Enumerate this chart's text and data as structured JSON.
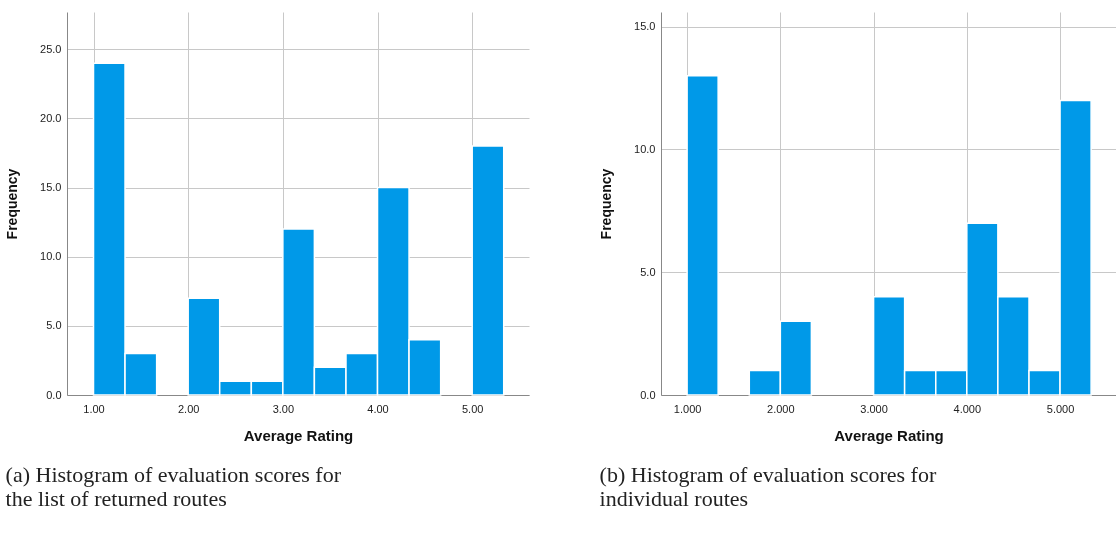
{
  "chart_data": [
    {
      "type": "histogram",
      "xlabel": "Average Rating",
      "ylabel": "Frequency",
      "annotations": [
        "(a) Histogram of evaluation scores for the list of returned routes"
      ],
      "bins": [
        1.0,
        1.333,
        1.667,
        2.0,
        2.333,
        2.667,
        3.0,
        3.333,
        3.667,
        4.0,
        4.333,
        4.667,
        5.0,
        5.333
      ],
      "values": [
        24,
        3,
        0,
        7,
        1,
        1,
        12,
        2,
        3,
        15,
        4,
        0,
        18
      ],
      "color": "#0099e8",
      "xlim": [
        0.72,
        5.6
      ],
      "ylim": [
        0,
        27.7
      ],
      "xticks": [
        {
          "value": 1,
          "label": "1.00"
        },
        {
          "value": 2,
          "label": "2.00"
        },
        {
          "value": 3,
          "label": "3.00"
        },
        {
          "value": 4,
          "label": "4.00"
        },
        {
          "value": 5,
          "label": "5.00"
        }
      ],
      "yticks": [
        {
          "value": 0,
          "label": "0.0"
        },
        {
          "value": 5,
          "label": "5.0"
        },
        {
          "value": 10,
          "label": "10.0"
        },
        {
          "value": 15,
          "label": "15.0"
        },
        {
          "value": 20,
          "label": "20.0"
        },
        {
          "value": 25,
          "label": "25.0"
        }
      ],
      "grid": true
    },
    {
      "type": "histogram",
      "xlabel": "Average Rating",
      "ylabel": "Frequency",
      "annotations": [
        "(b) Histogram of evaluation scores for individual routes"
      ],
      "bins": [
        1.0,
        1.333,
        1.667,
        2.0,
        2.333,
        2.667,
        3.0,
        3.333,
        3.667,
        4.0,
        4.333,
        4.667,
        5.0,
        5.333
      ],
      "values": [
        13,
        0,
        1,
        3,
        0,
        0,
        4,
        1,
        1,
        7,
        4,
        1,
        12
      ],
      "color": "#0099e8",
      "xlim": [
        0.72,
        5.6
      ],
      "ylim": [
        0,
        15.6
      ],
      "xticks": [
        {
          "value": 1,
          "label": "1.000"
        },
        {
          "value": 2,
          "label": "2.000"
        },
        {
          "value": 3,
          "label": "3.000"
        },
        {
          "value": 4,
          "label": "4.000"
        },
        {
          "value": 5,
          "label": "5.000"
        }
      ],
      "yticks": [
        {
          "value": 0,
          "label": "0.0"
        },
        {
          "value": 5,
          "label": "5.0"
        },
        {
          "value": 10,
          "label": "10.0"
        },
        {
          "value": 15,
          "label": "15.0"
        }
      ],
      "grid": true
    }
  ]
}
